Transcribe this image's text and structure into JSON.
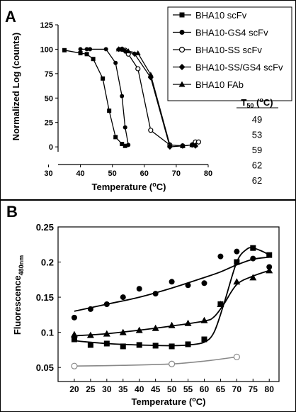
{
  "chart_data": [
    {
      "panel_label": "A",
      "type": "line",
      "xlabel": "Temperature (",
      "xlabel_sup": "o",
      "xlabel_tail": "C)",
      "ylabel": "Normalized Log (counts)",
      "xlim": [
        33,
        80
      ],
      "ylim": [
        -5,
        125
      ],
      "xticks": [
        "30",
        "40",
        "50",
        "60",
        "70",
        "80"
      ],
      "xtick_values": [
        30,
        40,
        50,
        60,
        70,
        80
      ],
      "yticks": [
        "0",
        "25",
        "50",
        "75",
        "100",
        "125"
      ],
      "ytick_values": [
        0,
        25,
        50,
        75,
        100,
        125
      ],
      "legend_position": "top-right",
      "series": [
        {
          "name": "BHA10 scFv",
          "marker": "square",
          "x": [
            35,
            40,
            42,
            44,
            47,
            49,
            51,
            53,
            54
          ],
          "y": [
            99,
            96,
            95,
            90,
            70,
            37,
            10,
            3,
            1
          ]
        },
        {
          "name": "BHA10-GS4 scFv",
          "marker": "circle",
          "x": [
            40,
            42,
            43,
            48,
            51,
            53,
            54,
            55
          ],
          "y": [
            100,
            100,
            100,
            100,
            86,
            52,
            20,
            2
          ]
        },
        {
          "name": "BHA10-SS scFv",
          "marker": "open-circle",
          "x": [
            53,
            54,
            55,
            58,
            62,
            68,
            72,
            75,
            76,
            77
          ],
          "y": [
            100,
            99,
            95,
            80,
            17,
            2,
            1,
            2,
            5,
            5
          ]
        },
        {
          "name": "BHA10-SS/GS4 scFv",
          "marker": "diamond",
          "x": [
            52,
            53,
            54,
            57,
            62,
            68,
            72,
            75,
            76
          ],
          "y": [
            100,
            100,
            98,
            95,
            71,
            0,
            1,
            2,
            1
          ]
        },
        {
          "name": "BHA10 FAb",
          "marker": "triangle",
          "x": [
            52,
            53,
            55,
            58,
            62,
            68,
            72,
            75,
            76
          ],
          "y": [
            100,
            100,
            98,
            96,
            74,
            2,
            1,
            2,
            2
          ]
        }
      ],
      "t50_header": "T",
      "t50_header_sub": "50",
      "t50_header_tail": " (",
      "t50_header_sup": "o",
      "t50_header_end": "C)",
      "t50_values": [
        "49",
        "53",
        "59",
        "62",
        "62"
      ]
    },
    {
      "panel_label": "B",
      "type": "line",
      "xlabel": "Temperature (",
      "xlabel_sup": "o",
      "xlabel_tail": "C)",
      "ylabel": "Fluorescence",
      "ylabel_sub": "480nm",
      "xlim": [
        15,
        83
      ],
      "ylim": [
        0.03,
        0.25
      ],
      "xticks": [
        "20",
        "25",
        "30",
        "35",
        "40",
        "45",
        "50",
        "55",
        "60",
        "65",
        "70",
        "75",
        "80"
      ],
      "xtick_values": [
        20,
        25,
        30,
        35,
        40,
        45,
        50,
        55,
        60,
        65,
        70,
        75,
        80
      ],
      "yticks": [
        "0.05",
        "0.1",
        "0.15",
        "0.2",
        "0.25"
      ],
      "ytick_values": [
        0.05,
        0.1,
        0.15,
        0.2,
        0.25
      ],
      "series": [
        {
          "marker": "circle",
          "x": [
            20,
            25,
            30,
            35,
            40,
            45,
            50,
            55,
            60,
            65,
            70,
            75,
            80
          ],
          "y": [
            0.121,
            0.133,
            0.14,
            0.15,
            0.162,
            0.155,
            0.172,
            0.167,
            0.17,
            0.208,
            0.215,
            0.205,
            0.193
          ],
          "fit_x": [
            20,
            30,
            40,
            50,
            60,
            65,
            70,
            75,
            80
          ],
          "fit_y": [
            0.13,
            0.14,
            0.15,
            0.163,
            0.178,
            0.186,
            0.196,
            0.204,
            0.207
          ],
          "color": "#000000"
        },
        {
          "marker": "triangle",
          "x": [
            20,
            25,
            30,
            35,
            40,
            45,
            50,
            55,
            60,
            65,
            70,
            75,
            80
          ],
          "y": [
            0.097,
            0.096,
            0.098,
            0.1,
            0.103,
            0.106,
            0.11,
            0.113,
            0.117,
            0.14,
            0.172,
            0.178,
            0.188
          ],
          "fit_x": [
            20,
            30,
            40,
            50,
            60,
            63,
            66,
            70,
            75,
            80
          ],
          "fit_y": [
            0.095,
            0.098,
            0.103,
            0.109,
            0.116,
            0.122,
            0.14,
            0.168,
            0.18,
            0.188
          ],
          "color": "#000000"
        },
        {
          "marker": "square",
          "x": [
            20,
            25,
            30,
            35,
            40,
            45,
            50,
            55,
            60,
            65,
            70,
            75,
            80
          ],
          "y": [
            0.09,
            0.082,
            0.084,
            0.08,
            0.082,
            0.081,
            0.08,
            0.083,
            0.09,
            0.14,
            0.2,
            0.22,
            0.21
          ],
          "fit_x": [
            20,
            30,
            40,
            50,
            55,
            60,
            63,
            66,
            70,
            73,
            75,
            78,
            80
          ],
          "fit_y": [
            0.088,
            0.084,
            0.082,
            0.081,
            0.082,
            0.086,
            0.1,
            0.14,
            0.2,
            0.218,
            0.22,
            0.215,
            0.21
          ],
          "color": "#000000"
        },
        {
          "marker": "open-circle",
          "x": [
            20,
            50,
            70
          ],
          "y": [
            0.052,
            0.055,
            0.065
          ],
          "fit_x": [
            20,
            35,
            50,
            60,
            70
          ],
          "fit_y": [
            0.052,
            0.053,
            0.055,
            0.059,
            0.065
          ],
          "color": "#888888"
        }
      ]
    }
  ]
}
